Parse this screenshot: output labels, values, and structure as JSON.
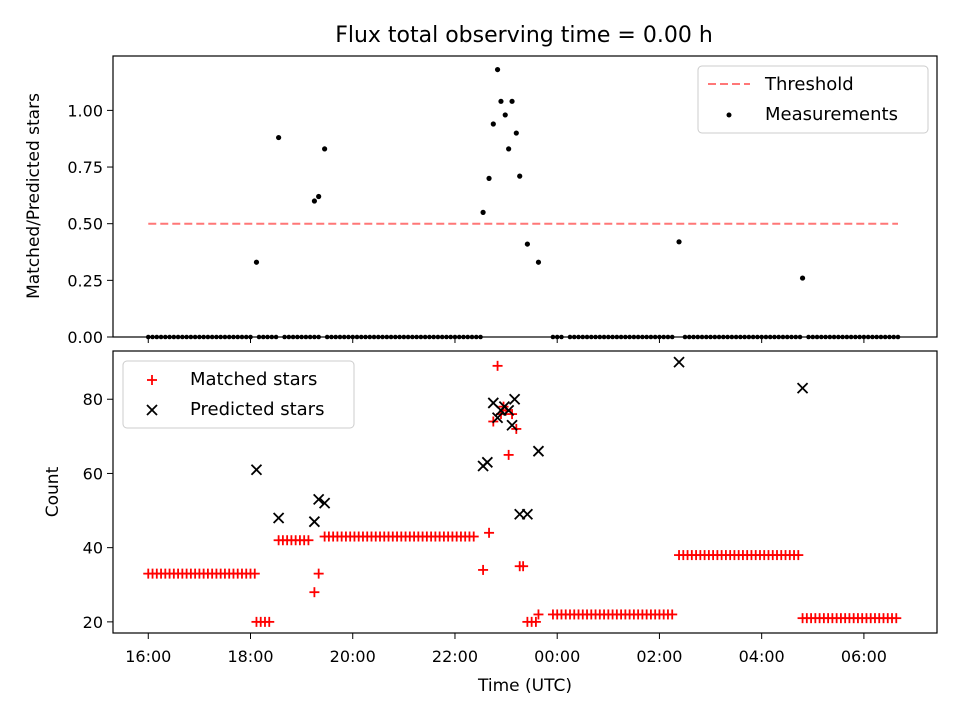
{
  "title": "Flux total observing time = 0.00 h",
  "chart_data": [
    {
      "type": "scatter",
      "ylabel": "Matched/Predicted stars",
      "ylim": [
        0,
        1.24
      ],
      "yticks": [
        "0.00",
        "0.25",
        "0.50",
        "0.75",
        "1.00"
      ],
      "xlim_hours": [
        15.31,
        31.43
      ],
      "legend_position": "top-right",
      "threshold": {
        "name": "Threshold",
        "value": 0.5,
        "x_range": [
          "16:00",
          "06:40"
        ],
        "color": "#ff7777"
      },
      "measurements": {
        "name": "Measurements",
        "color": "#000000",
        "zero_runs": [
          [
            "16:00",
            "18:00"
          ],
          [
            "18:10",
            "18:30"
          ],
          [
            "18:40",
            "19:20"
          ],
          [
            "19:30",
            "22:30"
          ],
          [
            "23:55",
            "00:05"
          ],
          [
            "00:15",
            "02:15"
          ],
          [
            "02:30",
            "04:45"
          ],
          [
            "04:55",
            "06:40"
          ]
        ],
        "points": [
          {
            "time": "18:07",
            "value": 0.33
          },
          {
            "time": "18:33",
            "value": 0.88
          },
          {
            "time": "19:15",
            "value": 0.6
          },
          {
            "time": "19:20",
            "value": 0.62
          },
          {
            "time": "19:27",
            "value": 0.83
          },
          {
            "time": "22:33",
            "value": 0.55
          },
          {
            "time": "22:40",
            "value": 0.7
          },
          {
            "time": "22:45",
            "value": 0.94
          },
          {
            "time": "22:50",
            "value": 1.18
          },
          {
            "time": "22:54",
            "value": 1.04
          },
          {
            "time": "22:59",
            "value": 0.98
          },
          {
            "time": "23:03",
            "value": 0.83
          },
          {
            "time": "23:07",
            "value": 1.04
          },
          {
            "time": "23:12",
            "value": 0.9
          },
          {
            "time": "23:16",
            "value": 0.71
          },
          {
            "time": "23:25",
            "value": 0.41
          },
          {
            "time": "23:38",
            "value": 0.33
          },
          {
            "time": "02:23",
            "value": 0.42
          },
          {
            "time": "04:48",
            "value": 0.26
          }
        ]
      }
    },
    {
      "type": "scatter",
      "ylabel": "Count",
      "xlabel": "Time (UTC)",
      "ylim": [
        17,
        93
      ],
      "yticks": [
        "20",
        "40",
        "60",
        "80"
      ],
      "xticks": [
        "16:00",
        "18:00",
        "20:00",
        "22:00",
        "00:00",
        "02:00",
        "04:00",
        "06:00"
      ],
      "xlim_hours": [
        15.31,
        31.43
      ],
      "legend_position": "top-left",
      "matched": {
        "name": "Matched stars",
        "color": "#ff0000",
        "runs": [
          {
            "from": "16:00",
            "to": "18:05",
            "value": 33
          },
          {
            "from": "18:07",
            "to": "18:25",
            "value": 20
          },
          {
            "from": "18:33",
            "to": "19:10",
            "value": 42
          },
          {
            "from": "19:27",
            "to": "22:25",
            "value": 43
          },
          {
            "from": "23:55",
            "to": "02:15",
            "value": 22
          },
          {
            "from": "02:23",
            "to": "04:45",
            "value": 38
          },
          {
            "from": "04:48",
            "to": "06:40",
            "value": 21
          }
        ],
        "points": [
          {
            "time": "19:15",
            "value": 28
          },
          {
            "time": "19:20",
            "value": 33
          },
          {
            "time": "22:33",
            "value": 34
          },
          {
            "time": "22:40",
            "value": 44
          },
          {
            "time": "22:45",
            "value": 74
          },
          {
            "time": "22:50",
            "value": 89
          },
          {
            "time": "22:54",
            "value": 76
          },
          {
            "time": "22:57",
            "value": 78
          },
          {
            "time": "23:00",
            "value": 77
          },
          {
            "time": "23:03",
            "value": 65
          },
          {
            "time": "23:07",
            "value": 76
          },
          {
            "time": "23:12",
            "value": 72
          },
          {
            "time": "23:16",
            "value": 35
          },
          {
            "time": "23:20",
            "value": 35
          },
          {
            "time": "23:25",
            "value": 20
          },
          {
            "time": "23:30",
            "value": 20
          },
          {
            "time": "23:35",
            "value": 20
          },
          {
            "time": "23:38",
            "value": 22
          }
        ]
      },
      "predicted": {
        "name": "Predicted stars",
        "color": "#000000",
        "points": [
          {
            "time": "18:07",
            "value": 61
          },
          {
            "time": "18:33",
            "value": 48
          },
          {
            "time": "19:15",
            "value": 47
          },
          {
            "time": "19:20",
            "value": 53
          },
          {
            "time": "19:27",
            "value": 52
          },
          {
            "time": "22:33",
            "value": 62
          },
          {
            "time": "22:38",
            "value": 63
          },
          {
            "time": "22:45",
            "value": 79
          },
          {
            "time": "22:50",
            "value": 75
          },
          {
            "time": "22:54",
            "value": 77
          },
          {
            "time": "22:58",
            "value": 78
          },
          {
            "time": "23:03",
            "value": 77
          },
          {
            "time": "23:07",
            "value": 73
          },
          {
            "time": "23:10",
            "value": 80
          },
          {
            "time": "23:16",
            "value": 49
          },
          {
            "time": "23:25",
            "value": 49
          },
          {
            "time": "23:38",
            "value": 66
          },
          {
            "time": "02:23",
            "value": 90
          },
          {
            "time": "04:48",
            "value": 83
          }
        ]
      }
    }
  ]
}
